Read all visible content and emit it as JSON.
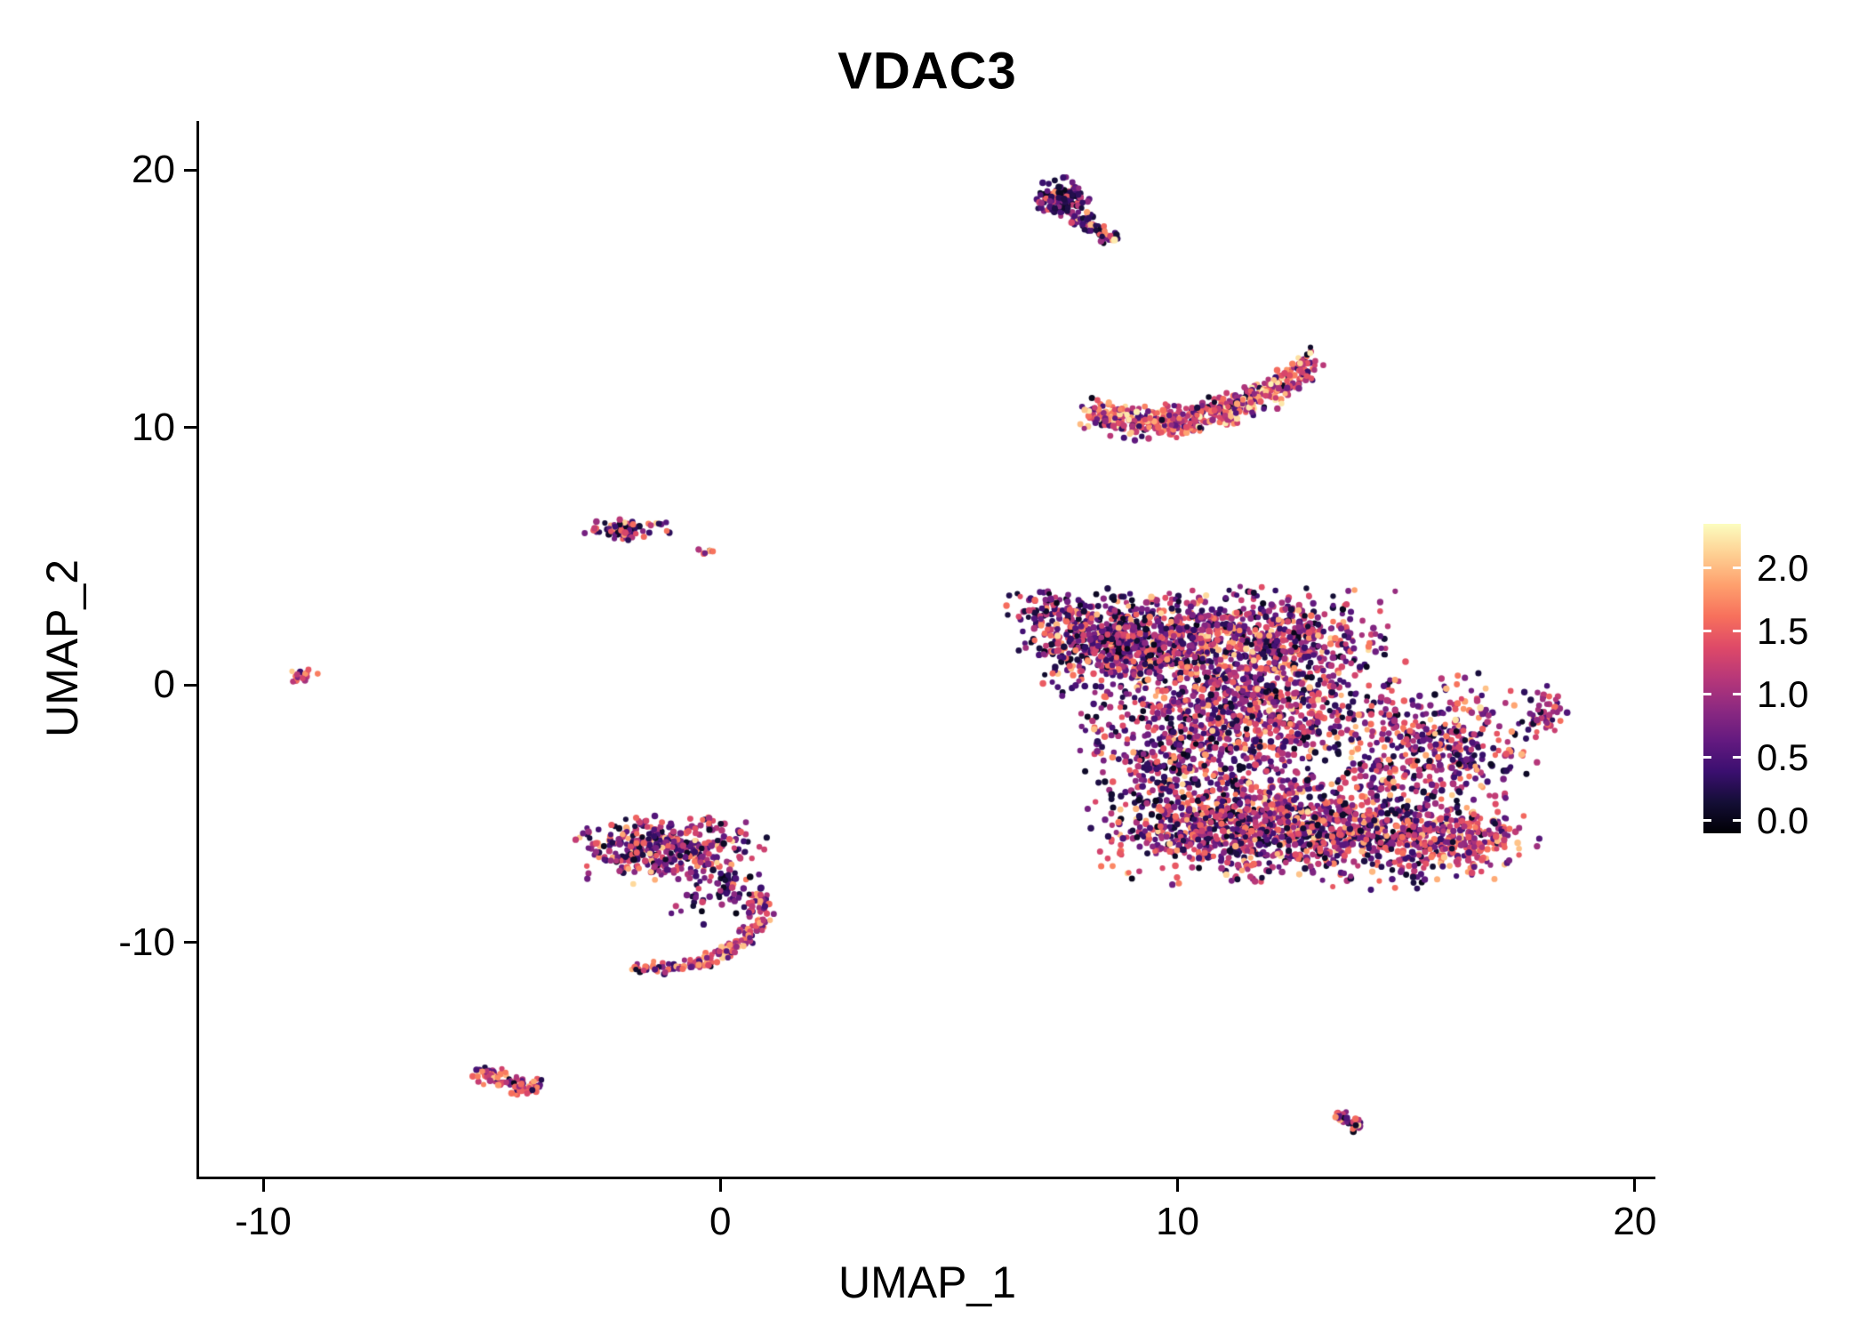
{
  "title": "VDAC3",
  "chart_data": {
    "type": "scatter",
    "title": "VDAC3",
    "xlabel": "UMAP_1",
    "ylabel": "UMAP_2",
    "xlim": [
      -11.4,
      20.45
    ],
    "ylim": [
      -19.1,
      21.9
    ],
    "x_ticks": [
      -10,
      0,
      10,
      20
    ],
    "y_ticks": [
      -10,
      0,
      10,
      20
    ],
    "grid": false,
    "background": "#ffffff",
    "axis_color": "#000000",
    "point_radius_px": 3.4,
    "legend_position": "right",
    "colorbar": {
      "ticks": [
        0.0,
        0.5,
        1.0,
        1.5,
        2.0
      ],
      "range": [
        -0.1,
        2.35
      ],
      "colormap": "magma",
      "stops": [
        {
          "t": 0.0,
          "color": "#000004"
        },
        {
          "t": 0.1,
          "color": "#140e36"
        },
        {
          "t": 0.2,
          "color": "#3b0f70"
        },
        {
          "t": 0.3,
          "color": "#641a80"
        },
        {
          "t": 0.4,
          "color": "#8c2981"
        },
        {
          "t": 0.5,
          "color": "#b73779"
        },
        {
          "t": 0.6,
          "color": "#de4968"
        },
        {
          "t": 0.7,
          "color": "#f7705c"
        },
        {
          "t": 0.8,
          "color": "#fe9f6d"
        },
        {
          "t": 0.9,
          "color": "#fecf92"
        },
        {
          "t": 1.0,
          "color": "#fcfdbf"
        }
      ]
    },
    "value_mixes": {
      "dark": [
        [
          0.4,
          0.0,
          0.35
        ],
        [
          0.3,
          0.35,
          0.9
        ],
        [
          0.22,
          0.9,
          1.5
        ],
        [
          0.08,
          1.5,
          2.0
        ]
      ],
      "mixed": [
        [
          0.22,
          0.0,
          0.4
        ],
        [
          0.33,
          0.4,
          1.05
        ],
        [
          0.33,
          1.05,
          1.65
        ],
        [
          0.12,
          1.65,
          2.2
        ]
      ],
      "bright": [
        [
          0.08,
          0.0,
          0.45
        ],
        [
          0.22,
          0.45,
          1.05
        ],
        [
          0.45,
          1.05,
          1.7
        ],
        [
          0.25,
          1.7,
          2.3
        ]
      ],
      "pink": [
        [
          0.1,
          0.0,
          0.5
        ],
        [
          0.28,
          0.5,
          1.1
        ],
        [
          0.47,
          1.1,
          1.7
        ],
        [
          0.15,
          1.7,
          2.1
        ]
      ]
    },
    "clusters": [
      {
        "name": "top-streak-head",
        "type": "gauss",
        "cx": 7.5,
        "cy": 18.85,
        "sx": 0.27,
        "sy": 0.38,
        "n": 120,
        "mix": "dark"
      },
      {
        "name": "top-streak-tail",
        "type": "streak",
        "x1": 7.8,
        "y1": 18.2,
        "x2": 8.6,
        "y2": 17.3,
        "w": 0.12,
        "n": 60,
        "mix": "dark"
      },
      {
        "name": "crescent",
        "type": "quadcurve",
        "x0": 8.05,
        "xspan": 4.9,
        "a": 10.55,
        "b": -2.6,
        "c": 4.6,
        "jx": 0.12,
        "jy": 0.3,
        "n": 560,
        "mix": "bright"
      },
      {
        "name": "upper-small-left",
        "type": "gauss",
        "cx": -2.05,
        "cy": 6.0,
        "sx": 0.42,
        "sy": 0.2,
        "n": 70,
        "mix": "mixed"
      },
      {
        "name": "upper-small-satellite",
        "type": "gauss",
        "cx": -0.3,
        "cy": 5.15,
        "sx": 0.12,
        "sy": 0.08,
        "n": 8,
        "mix": "mixed"
      },
      {
        "name": "far-left-dot",
        "type": "gauss",
        "cx": -9.25,
        "cy": 0.4,
        "sx": 0.22,
        "sy": 0.18,
        "n": 18,
        "mix": "pink"
      },
      {
        "name": "main-left-tip",
        "type": "gauss",
        "cx": 7.2,
        "cy": 3.0,
        "sx": 0.5,
        "sy": 0.4,
        "n": 60,
        "mix": "dark"
      },
      {
        "name": "main-upper-left",
        "type": "gauss",
        "cx": 8.9,
        "cy": 1.7,
        "sx": 1.05,
        "sy": 0.9,
        "n": 560,
        "mix": "mixed"
      },
      {
        "name": "main-upper-left-dark",
        "type": "gauss",
        "cx": 8.3,
        "cy": 1.9,
        "sx": 0.6,
        "sy": 0.7,
        "n": 160,
        "mix": "dark"
      },
      {
        "name": "main-upper-right",
        "type": "gauss",
        "cx": 11.7,
        "cy": 1.7,
        "sx": 1.3,
        "sy": 0.9,
        "n": 660,
        "mix": "mixed"
      },
      {
        "name": "main-center",
        "type": "gauss",
        "cx": 11.4,
        "cy": -1.2,
        "sx": 1.5,
        "sy": 1.15,
        "n": 860,
        "mix": "mixed"
      },
      {
        "name": "main-sparse-pocket",
        "type": "gauss",
        "cx": 9.7,
        "cy": -3.2,
        "sx": 0.8,
        "sy": 0.8,
        "n": 150,
        "mix": "dark"
      },
      {
        "name": "main-lower-left",
        "type": "gauss",
        "cx": 10.9,
        "cy": -5.4,
        "sx": 1.25,
        "sy": 1.0,
        "n": 660,
        "mix": "mixed"
      },
      {
        "name": "main-lower-right",
        "type": "gauss",
        "cx": 13.8,
        "cy": -5.6,
        "sx": 1.5,
        "sy": 1.0,
        "n": 760,
        "mix": "mixed"
      },
      {
        "name": "main-right-lobe",
        "type": "gauss",
        "cx": 15.6,
        "cy": -2.3,
        "sx": 0.95,
        "sy": 1.15,
        "n": 400,
        "mix": "mixed"
      },
      {
        "name": "main-bottom-right-tip",
        "type": "gauss",
        "cx": 16.2,
        "cy": -6.0,
        "sx": 0.75,
        "sy": 0.6,
        "n": 210,
        "mix": "pink"
      },
      {
        "name": "right-dot",
        "type": "gauss",
        "cx": 18.0,
        "cy": -1.05,
        "sx": 0.22,
        "sy": 0.45,
        "n": 45,
        "mix": "mixed"
      },
      {
        "name": "center-left-blob",
        "type": "gauss",
        "cx": -1.2,
        "cy": -6.35,
        "sx": 0.95,
        "sy": 0.58,
        "n": 390,
        "mix": "mixed"
      },
      {
        "name": "center-left-scatter",
        "type": "gauss",
        "cx": -0.1,
        "cy": -7.9,
        "sx": 0.6,
        "sy": 0.6,
        "n": 70,
        "mix": "dark"
      },
      {
        "name": "hook-arc",
        "type": "arc",
        "cx": -1.55,
        "cy": -8.6,
        "r": 2.45,
        "a1": 12,
        "a2": -100,
        "w": 0.13,
        "n": 165,
        "mix": "pink"
      },
      {
        "name": "bottom-left-streak",
        "type": "streak",
        "x1": -5.3,
        "y1": -15.0,
        "x2": -4.05,
        "y2": -15.75,
        "w": 0.17,
        "n": 90,
        "mix": "pink"
      },
      {
        "name": "bottom-right-streak",
        "type": "streak",
        "x1": 13.5,
        "y1": -16.6,
        "x2": 14.0,
        "y2": -17.25,
        "w": 0.1,
        "n": 30,
        "mix": "mixed"
      }
    ],
    "accent_points": [
      {
        "x": 8.62,
        "y": 17.28,
        "v": 2.25
      }
    ]
  }
}
